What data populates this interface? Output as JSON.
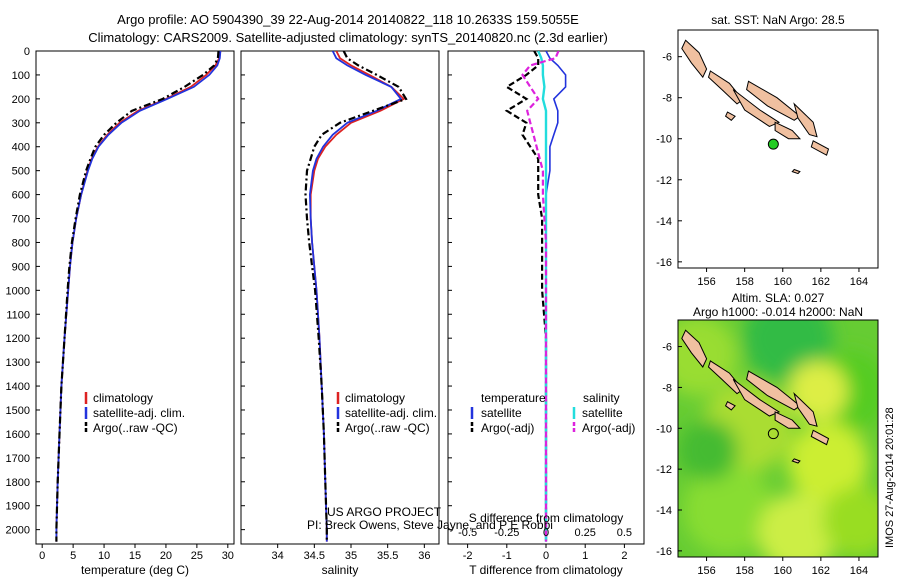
{
  "title": {
    "line1": "Argo profile: AO 5904390_39 22-Aug-2014 20140822_118 10.2633S 159.5055E",
    "line2": "Climatology: CARS2009. Satellite-adjusted climatology: synTS_20140820.nc (2.3d earlier)"
  },
  "credit": {
    "line1": "US ARGO PROJECT",
    "line2": "PI: Breck Owens, Steve Jayne, and P E Robbi"
  },
  "watermark": "IMOS 27-Aug-2014 20:01:28",
  "colors": {
    "climatology": "#dd2222",
    "satellite": "#2233dd",
    "argo": "#000000",
    "sal_satellite": "#22dddd",
    "sal_argo": "#dd22dd",
    "land": "#f0c0a0",
    "marker": "#22cc22"
  },
  "chart_data": [
    {
      "type": "line",
      "xlabel": "temperature (deg C)",
      "ylabel": "",
      "xlim": [
        -1,
        31
      ],
      "ylim": [
        2060,
        0
      ],
      "xticks": [
        0,
        5,
        10,
        15,
        20,
        25,
        30
      ],
      "yticks": [
        0,
        100,
        200,
        300,
        400,
        500,
        600,
        700,
        800,
        900,
        1000,
        1100,
        1200,
        1300,
        1400,
        1500,
        1600,
        1700,
        1800,
        1900,
        2000
      ],
      "legend": [
        "climatology",
        "satellite-adj. clim.",
        "Argo(..raw -QC)"
      ],
      "depth": [
        0,
        30,
        60,
        100,
        150,
        200,
        250,
        300,
        350,
        400,
        450,
        500,
        600,
        700,
        800,
        900,
        1000,
        1200,
        1400,
        1600,
        1800,
        2000,
        2050
      ],
      "series": [
        {
          "name": "climatology",
          "values": [
            28.8,
            28.6,
            28.0,
            26.5,
            24.0,
            20.0,
            15.5,
            12.5,
            10.5,
            9.0,
            8.0,
            7.3,
            6.3,
            5.5,
            4.9,
            4.5,
            4.2,
            3.6,
            3.1,
            2.8,
            2.5,
            2.3,
            2.3
          ]
        },
        {
          "name": "satellite-adj. clim.",
          "values": [
            28.8,
            28.7,
            28.3,
            27.0,
            24.5,
            20.2,
            15.8,
            12.8,
            10.7,
            9.1,
            8.1,
            7.4,
            6.3,
            5.5,
            4.9,
            4.5,
            4.2,
            3.6,
            3.1,
            2.8,
            2.5,
            2.3,
            2.3
          ]
        },
        {
          "name": "Argo(..raw -QC)",
          "values": [
            28.5,
            28.4,
            27.8,
            26.0,
            23.0,
            19.5,
            14.5,
            12.0,
            10.0,
            8.6,
            7.8,
            7.1,
            6.1,
            5.4,
            4.8,
            4.4,
            4.1,
            3.6,
            3.1,
            2.8,
            2.5,
            2.3,
            2.3
          ]
        }
      ]
    },
    {
      "type": "line",
      "xlabel": "salinity",
      "xlim": [
        33.5,
        36.2
      ],
      "ylim": [
        2060,
        0
      ],
      "xticks": [
        34,
        34.5,
        35,
        35.5,
        36
      ],
      "legend": [
        "climatology",
        "satellite-adj. clim.",
        "Argo(..raw -QC)"
      ],
      "depth": [
        0,
        30,
        60,
        100,
        150,
        200,
        250,
        300,
        350,
        400,
        450,
        500,
        600,
        700,
        800,
        900,
        1000,
        1200,
        1400,
        1600,
        1800,
        2000,
        2050
      ],
      "series": [
        {
          "name": "climatology",
          "values": [
            34.8,
            34.85,
            35.0,
            35.25,
            35.55,
            35.72,
            35.4,
            35.0,
            34.8,
            34.65,
            34.55,
            34.5,
            34.45,
            34.45,
            34.47,
            34.5,
            34.53,
            34.57,
            34.6,
            34.63,
            34.65,
            34.67,
            34.67
          ]
        },
        {
          "name": "satellite-adj. clim.",
          "values": [
            34.75,
            34.8,
            34.95,
            35.2,
            35.55,
            35.68,
            35.35,
            34.95,
            34.75,
            34.62,
            34.53,
            34.48,
            34.44,
            34.45,
            34.47,
            34.5,
            34.53,
            34.57,
            34.6,
            34.63,
            34.65,
            34.67,
            34.67
          ]
        },
        {
          "name": "Argo(..raw -QC)",
          "values": [
            34.9,
            34.95,
            35.1,
            35.35,
            35.65,
            35.75,
            35.3,
            34.85,
            34.6,
            34.5,
            34.45,
            34.4,
            34.38,
            34.4,
            34.43,
            34.47,
            34.51,
            34.56,
            34.6,
            34.63,
            34.65,
            34.67,
            34.67
          ]
        }
      ]
    },
    {
      "type": "line",
      "xlabel": "T difference from climatology",
      "xlabel2": "S difference from climatology",
      "xlim": [
        -2.5,
        2.5
      ],
      "ylim": [
        2060,
        0
      ],
      "xticks": [
        -2,
        -1,
        0,
        1,
        2
      ],
      "xticks2": [
        -0.5,
        -0.25,
        0,
        0.25,
        0.5
      ],
      "legend_left_title": "temperature",
      "legend_right_title": "salinity",
      "legend": [
        "satellite",
        "Argo(-adj)",
        "satellite",
        "Argo(-adj)"
      ],
      "depth": [
        0,
        30,
        60,
        100,
        150,
        200,
        250,
        300,
        350,
        400,
        450,
        500,
        600,
        700,
        800,
        900,
        1000,
        1200,
        1400,
        1600,
        1800,
        2000,
        2050
      ],
      "series": [
        {
          "name": "satellite",
          "values": [
            0.0,
            0.1,
            0.3,
            0.5,
            0.5,
            0.2,
            0.3,
            0.3,
            0.2,
            0.1,
            0.1,
            0.1,
            0.0,
            0.0,
            0.0,
            0.0,
            0.0,
            0.0,
            0.0,
            0.0,
            0.0,
            0.0,
            0.0
          ]
        },
        {
          "name": "Argo(-adj)",
          "values": [
            -0.3,
            -0.2,
            -0.2,
            -0.5,
            -1.0,
            -0.5,
            -1.0,
            -0.5,
            -0.6,
            -0.4,
            -0.2,
            -0.2,
            -0.2,
            -0.1,
            -0.1,
            -0.1,
            -0.1,
            0.0,
            0.0,
            0.0,
            0.0,
            0.0,
            0.0
          ]
        },
        {
          "name": "satellite",
          "values": [
            -0.05,
            -0.03,
            -0.02,
            -0.02,
            -0.01,
            -0.02,
            0.0,
            0.0,
            0.0,
            0.0,
            0.0,
            0.0,
            0.0,
            0.0,
            0.0,
            0.0,
            0.0,
            0.0,
            0.0,
            0.0,
            0.0,
            0.0,
            0.0
          ]
        },
        {
          "name": "Argo(-adj)",
          "values": [
            0.08,
            0.06,
            -0.1,
            -0.15,
            -0.1,
            -0.05,
            -0.12,
            -0.1,
            -0.08,
            -0.06,
            -0.04,
            -0.02,
            -0.02,
            -0.01,
            0.0,
            0.0,
            0.0,
            0.0,
            0.0,
            0.0,
            0.0,
            0.0,
            0.0
          ]
        }
      ]
    },
    {
      "type": "scatter",
      "title": "sat. SST: NaN Argo: 28.5",
      "xlim": [
        154.5,
        165
      ],
      "ylim": [
        -16.3,
        -4.7
      ],
      "xticks": [
        156,
        158,
        160,
        162,
        164
      ],
      "yticks": [
        -6,
        -8,
        -10,
        -12,
        -14,
        -16
      ],
      "point": {
        "lon": 159.5055,
        "lat": -10.2633
      }
    },
    {
      "type": "heatmap",
      "title": "Altim. SLA: 0.027",
      "subtitle": "Argo h1000: -0.014 h2000: NaN",
      "xlim": [
        154.5,
        165
      ],
      "ylim": [
        -16.3,
        -4.7
      ],
      "xticks": [
        156,
        158,
        160,
        162,
        164
      ],
      "yticks": [
        -6,
        -8,
        -10,
        -12,
        -14,
        -16
      ],
      "point": {
        "lon": 159.5055,
        "lat": -10.2633
      }
    }
  ]
}
